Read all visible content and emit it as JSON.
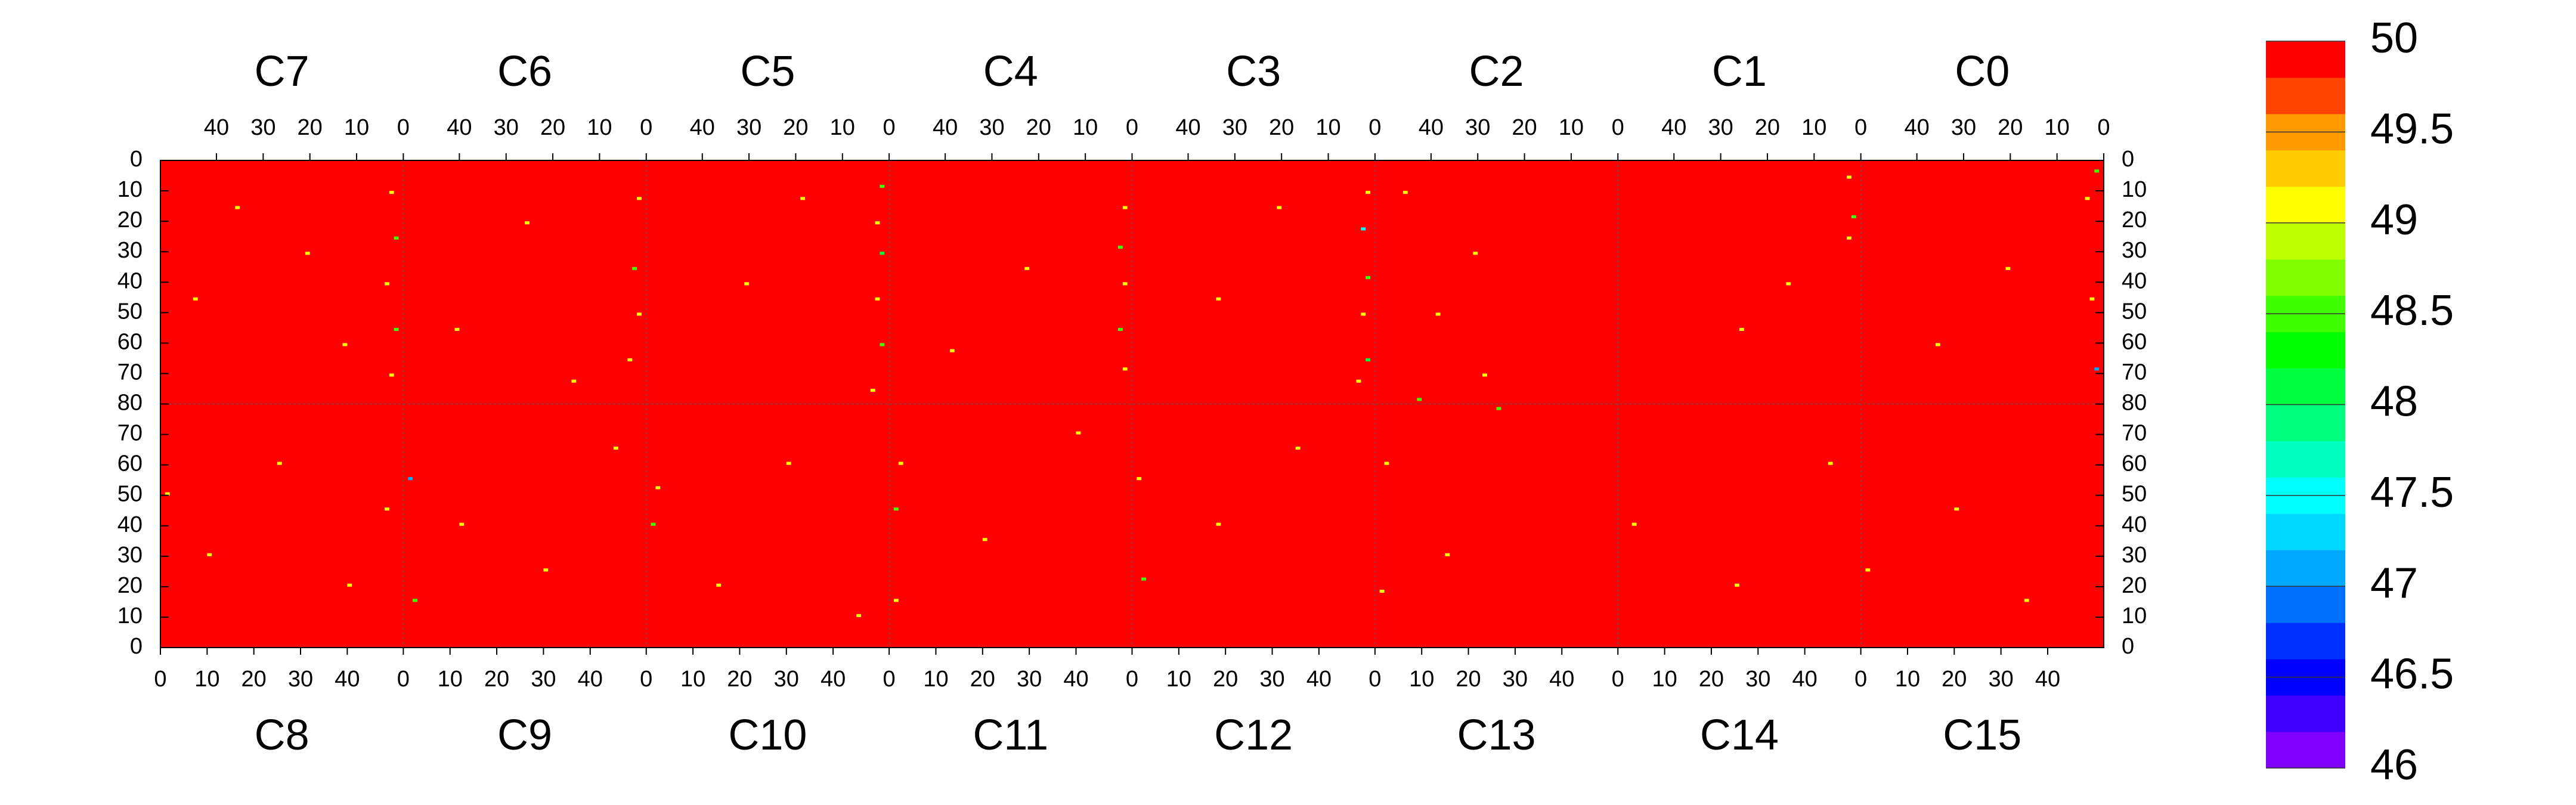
{
  "chart_data": {
    "type": "heatmap",
    "background_value": 50,
    "xlim": [
      0,
      52
    ],
    "xticks": [
      0,
      10,
      20,
      30,
      40
    ],
    "ylim": [
      0,
      80
    ],
    "yticks_upper": [
      0,
      10,
      20,
      30,
      40,
      50,
      60,
      70,
      80
    ],
    "yticks_lower": [
      0,
      10,
      20,
      30,
      40,
      50,
      60,
      70
    ],
    "zlim": [
      46,
      50
    ],
    "zticks": [
      50,
      49.5,
      49,
      48.5,
      48,
      47.5,
      47,
      46.5,
      46
    ],
    "colors": [
      "#7f00ff",
      "#4000ff",
      "#0000ff",
      "#0030ff",
      "#0070ff",
      "#00a8ff",
      "#00d8ff",
      "#00ffff",
      "#00ffc0",
      "#00ff80",
      "#00ff40",
      "#00ff00",
      "#40ff00",
      "#80ff00",
      "#c0ff00",
      "#ffff00",
      "#ffcc00",
      "#ff9900",
      "#ff4400",
      "#ff0000"
    ],
    "top_panels": [
      {
        "label": "C7",
        "cells": [
          [
            2,
            10,
            49
          ],
          [
            1,
            25,
            48.5
          ],
          [
            3,
            40,
            49
          ],
          [
            1,
            55,
            48.5
          ],
          [
            2,
            70,
            49
          ],
          [
            20,
            30,
            49
          ],
          [
            35,
            15,
            49
          ],
          [
            12,
            60,
            49
          ],
          [
            44,
            45,
            49
          ]
        ]
      },
      {
        "label": "C6",
        "cells": [
          [
            1,
            12,
            49
          ],
          [
            2,
            35,
            48.5
          ],
          [
            1,
            50,
            49
          ],
          [
            3,
            65,
            49
          ],
          [
            25,
            20,
            49
          ],
          [
            40,
            55,
            49
          ],
          [
            15,
            72,
            49
          ]
        ]
      },
      {
        "label": "C5",
        "cells": [
          [
            1,
            8,
            48.5
          ],
          [
            2,
            20,
            49
          ],
          [
            1,
            30,
            48
          ],
          [
            2,
            45,
            49
          ],
          [
            1,
            60,
            48.5
          ],
          [
            3,
            75,
            49
          ],
          [
            30,
            40,
            49
          ],
          [
            18,
            12,
            49
          ]
        ]
      },
      {
        "label": "C4",
        "cells": [
          [
            1,
            15,
            49
          ],
          [
            2,
            28,
            48.5
          ],
          [
            1,
            40,
            49
          ],
          [
            2,
            55,
            48.5
          ],
          [
            1,
            68,
            49
          ],
          [
            22,
            35,
            49
          ],
          [
            38,
            62,
            49
          ]
        ]
      },
      {
        "label": "C3",
        "cells": [
          [
            1,
            10,
            49
          ],
          [
            2,
            22,
            47.5
          ],
          [
            1,
            38,
            48.5
          ],
          [
            2,
            50,
            49
          ],
          [
            1,
            65,
            48
          ],
          [
            3,
            72,
            49
          ],
          [
            20,
            15,
            49
          ],
          [
            33,
            45,
            49
          ]
        ]
      },
      {
        "label": "C2",
        "cells": [
          [
            45,
            10,
            49
          ],
          [
            30,
            30,
            49
          ],
          [
            38,
            50,
            49
          ],
          [
            28,
            70,
            49
          ],
          [
            42,
            78,
            48.5
          ]
        ]
      },
      {
        "label": "C1",
        "cells": [
          [
            2,
            5,
            49
          ],
          [
            1,
            18,
            48.5
          ],
          [
            2,
            25,
            49
          ],
          [
            15,
            40,
            49
          ],
          [
            25,
            55,
            49
          ]
        ]
      },
      {
        "label": "C0",
        "cells": [
          [
            1,
            3,
            48.5
          ],
          [
            3,
            12,
            49
          ],
          [
            2,
            45,
            49
          ],
          [
            1,
            68,
            47
          ],
          [
            20,
            35,
            49
          ],
          [
            35,
            60,
            49
          ]
        ]
      }
    ],
    "bottom_panels": [
      {
        "label": "C8",
        "cells": [
          [
            1,
            50,
            49
          ],
          [
            10,
            30,
            49
          ],
          [
            25,
            60,
            49
          ],
          [
            40,
            20,
            49
          ],
          [
            48,
            45,
            49
          ]
        ]
      },
      {
        "label": "C9",
        "cells": [
          [
            1,
            55,
            47
          ],
          [
            2,
            15,
            48.5
          ],
          [
            12,
            40,
            49
          ],
          [
            30,
            25,
            49
          ],
          [
            45,
            65,
            49
          ]
        ]
      },
      {
        "label": "C10",
        "cells": [
          [
            1,
            40,
            48.5
          ],
          [
            2,
            52,
            49
          ],
          [
            15,
            20,
            49
          ],
          [
            30,
            60,
            49
          ],
          [
            45,
            10,
            49
          ]
        ]
      },
      {
        "label": "C11",
        "cells": [
          [
            1,
            45,
            48.5
          ],
          [
            2,
            60,
            49
          ],
          [
            1,
            15,
            49
          ],
          [
            20,
            35,
            49
          ],
          [
            40,
            70,
            49
          ]
        ]
      },
      {
        "label": "C12",
        "cells": [
          [
            1,
            55,
            49
          ],
          [
            2,
            22,
            48.5
          ],
          [
            18,
            40,
            49
          ],
          [
            35,
            65,
            49
          ]
        ]
      },
      {
        "label": "C13",
        "cells": [
          [
            1,
            18,
            49
          ],
          [
            2,
            60,
            49
          ],
          [
            15,
            30,
            49
          ],
          [
            26,
            78,
            48.5
          ]
        ]
      },
      {
        "label": "C14",
        "cells": [
          [
            3,
            40,
            49
          ],
          [
            25,
            20,
            49
          ],
          [
            45,
            60,
            49
          ]
        ]
      },
      {
        "label": "C15",
        "cells": [
          [
            1,
            25,
            49
          ],
          [
            20,
            45,
            49
          ],
          [
            35,
            15,
            49
          ]
        ]
      }
    ]
  }
}
